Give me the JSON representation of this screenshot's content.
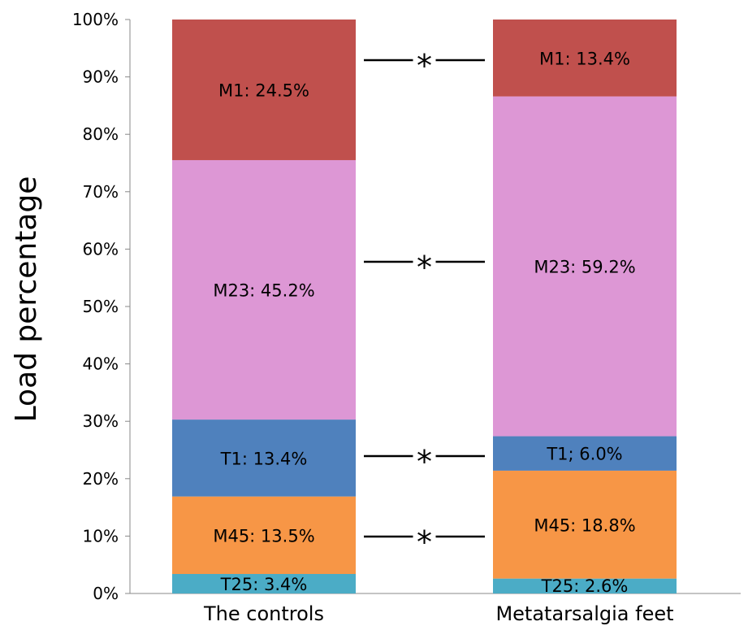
{
  "chart_data": {
    "type": "bar",
    "stacked": true,
    "ylabel": "Load percentage",
    "xlabel": "",
    "ylim": [
      0,
      100
    ],
    "y_ticks": [
      "0%",
      "10%",
      "20%",
      "30%",
      "40%",
      "50%",
      "60%",
      "70%",
      "80%",
      "90%",
      "100%"
    ],
    "categories": [
      "The controls",
      "Metatarsalgia feet"
    ],
    "series": [
      {
        "key": "T25",
        "values": [
          3.4,
          2.6
        ],
        "color": "#4bacc6",
        "labels": [
          "T25: 3.4%",
          "T25: 2.6%"
        ]
      },
      {
        "key": "M45",
        "values": [
          13.5,
          18.8
        ],
        "color": "#f79646",
        "labels": [
          "M45: 13.5%",
          "M45: 18.8%"
        ]
      },
      {
        "key": "T1",
        "values": [
          13.4,
          6.0
        ],
        "color": "#4f81bd",
        "labels": [
          "T1: 13.4%",
          "T1; 6.0%"
        ]
      },
      {
        "key": "M23",
        "values": [
          45.2,
          59.2
        ],
        "color": "#dd97d5",
        "labels": [
          "M23: 45.2%",
          "M23: 59.2%"
        ]
      },
      {
        "key": "M1",
        "values": [
          24.5,
          13.4
        ],
        "color": "#c0504d",
        "labels": [
          "M1: 24.5%",
          "M1: 13.4%"
        ]
      }
    ],
    "significance_markers": [
      {
        "between": "M1",
        "symbol": "*"
      },
      {
        "between": "M23",
        "symbol": "*"
      },
      {
        "between": "T1",
        "symbol": "*"
      },
      {
        "between": "M45",
        "symbol": "*"
      }
    ],
    "grid": false,
    "legend": "none"
  }
}
